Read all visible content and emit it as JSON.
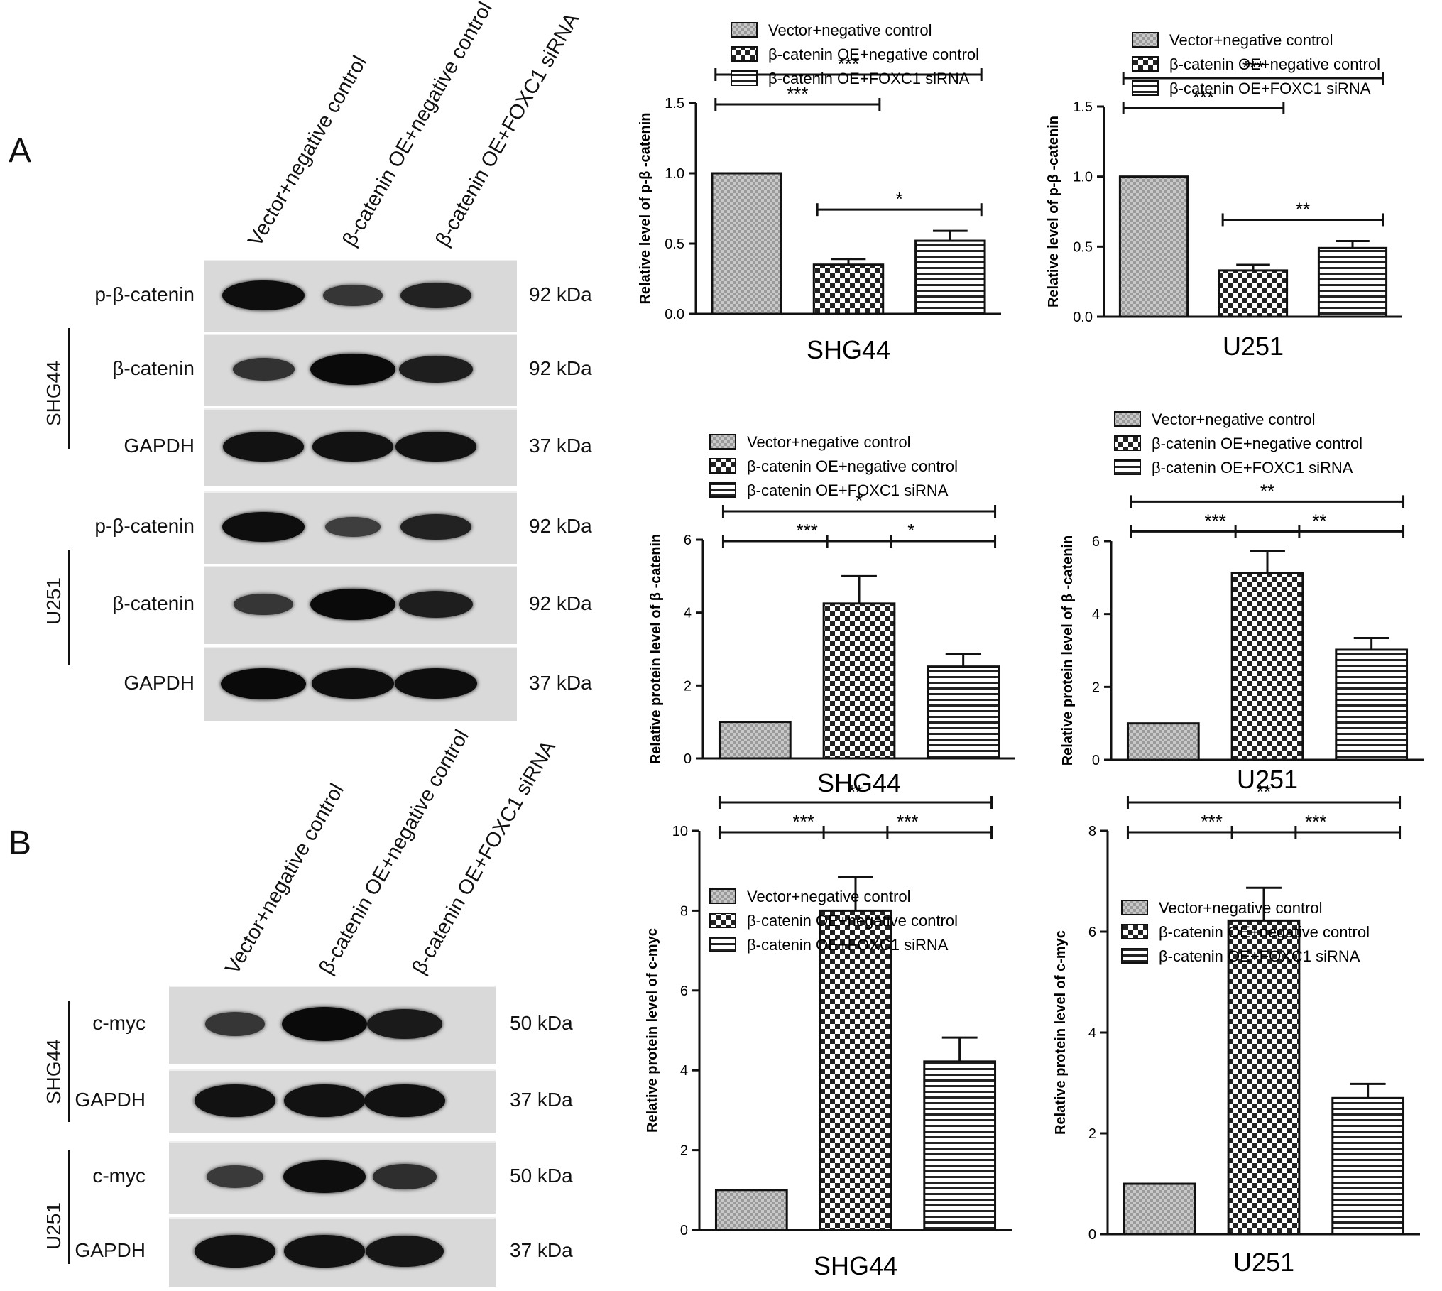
{
  "panels": {
    "A": "A",
    "B": "B"
  },
  "western_A": {
    "lanes": [
      "Vector+negative control",
      "β-catenin OE+negative control",
      "β-catenin OE+FOXC1 siRNA"
    ],
    "cells": [
      "SHG44",
      "U251"
    ],
    "rows": [
      {
        "label": "p-β-catenin",
        "kda": "92 kDa",
        "intensity": [
          0.95,
          0.45,
          0.7
        ]
      },
      {
        "label": "β-catenin",
        "kda": "92 kDa",
        "intensity": [
          0.5,
          1.0,
          0.75
        ]
      },
      {
        "label": "GAPDH",
        "kda": "37 kDa",
        "intensity": [
          0.9,
          0.9,
          0.9
        ]
      },
      {
        "label": "p-β-catenin",
        "kda": "92 kDa",
        "intensity": [
          0.95,
          0.35,
          0.7
        ]
      },
      {
        "label": "β-catenin",
        "kda": "92 kDa",
        "intensity": [
          0.45,
          1.0,
          0.75
        ]
      },
      {
        "label": "GAPDH",
        "kda": "37 kDa",
        "intensity": [
          1.0,
          0.95,
          0.95
        ]
      }
    ]
  },
  "western_B": {
    "lanes": [
      "Vector+negative control",
      "β-catenin OE+negative control",
      "β-catenin OE+FOXC1 siRNA"
    ],
    "cells": [
      "SHG44",
      "U251"
    ],
    "rows": [
      {
        "label": "c-myc",
        "kda": "50 kDa",
        "intensity": [
          0.45,
          1.0,
          0.8
        ]
      },
      {
        "label": "GAPDH",
        "kda": "37 kDa",
        "intensity": [
          0.9,
          0.9,
          0.9
        ]
      },
      {
        "label": "c-myc",
        "kda": "50 kDa",
        "intensity": [
          0.4,
          0.95,
          0.55
        ]
      },
      {
        "label": "GAPDH",
        "kda": "37 kDa",
        "intensity": [
          0.9,
          0.9,
          0.85
        ]
      }
    ]
  },
  "legend_entries": [
    "Vector+negative control",
    "β-catenin OE+negative control",
    "β-catenin OE+FOXC1 siRNA"
  ],
  "chart_data": [
    {
      "type": "bar",
      "title": "SHG44",
      "ylabel": "Relative level of p-β -catenin",
      "categories": [
        "Vector+negative control",
        "β-catenin OE+negative control",
        "β-catenin OE+FOXC1 siRNA"
      ],
      "values": [
        1.0,
        0.35,
        0.52
      ],
      "errors": [
        0,
        0.04,
        0.07
      ],
      "ylim": [
        0,
        1.5
      ],
      "yticks": [
        "0.0",
        "0.5",
        "1.0",
        "1.5"
      ],
      "tick_values": [
        0,
        0.5,
        1.0,
        1.5
      ],
      "significance": [
        {
          "from": 0,
          "to": 1,
          "label": "***",
          "level": 1
        },
        {
          "from": 1,
          "to": 2,
          "label": "*",
          "level": 0
        },
        {
          "from": 0,
          "to": 2,
          "label": "***",
          "level": 2
        }
      ]
    },
    {
      "type": "bar",
      "title": "U251",
      "ylabel": "Relative level of p-β -catenin",
      "categories": [
        "Vector+negative control",
        "β-catenin OE+negative control",
        "β-catenin OE+FOXC1 siRNA"
      ],
      "values": [
        1.0,
        0.33,
        0.49
      ],
      "errors": [
        0,
        0.04,
        0.05
      ],
      "ylim": [
        0,
        1.5
      ],
      "yticks": [
        "0.0",
        "0.5",
        "1.0",
        "1.5"
      ],
      "tick_values": [
        0,
        0.5,
        1.0,
        1.5
      ],
      "significance": [
        {
          "from": 0,
          "to": 1,
          "label": "***",
          "level": 1
        },
        {
          "from": 1,
          "to": 2,
          "label": "**",
          "level": 0
        },
        {
          "from": 0,
          "to": 2,
          "label": "***",
          "level": 2
        }
      ]
    },
    {
      "type": "bar",
      "title": "SHG44",
      "ylabel": "Relative protein level of β -catenin",
      "categories": [
        "Vector+negative control",
        "β-catenin OE+negative control",
        "β-catenin OE+FOXC1 siRNA"
      ],
      "values": [
        1.0,
        4.25,
        2.52
      ],
      "errors": [
        0,
        0.75,
        0.35
      ],
      "ylim": [
        0,
        6
      ],
      "yticks": [
        "0",
        "2",
        "4",
        "6"
      ],
      "tick_values": [
        0,
        2,
        4,
        6
      ],
      "significance": [
        {
          "from": 0,
          "to": 1,
          "label": "***",
          "level": 1
        },
        {
          "from": 1,
          "to": 2,
          "label": "*",
          "level": 1
        },
        {
          "from": 0,
          "to": 2,
          "label": "*",
          "level": 2
        }
      ]
    },
    {
      "type": "bar",
      "title": "U251",
      "ylabel": "Relative protein level of β -catenin",
      "categories": [
        "Vector+negative control",
        "β-catenin OE+negative control",
        "β-catenin OE+FOXC1 siRNA"
      ],
      "values": [
        1.0,
        5.12,
        3.02
      ],
      "errors": [
        0,
        0.6,
        0.32
      ],
      "ylim": [
        0,
        6
      ],
      "yticks": [
        "0",
        "2",
        "4",
        "6"
      ],
      "tick_values": [
        0,
        2,
        4,
        6
      ],
      "significance": [
        {
          "from": 0,
          "to": 1,
          "label": "***",
          "level": 1
        },
        {
          "from": 1,
          "to": 2,
          "label": "**",
          "level": 1
        },
        {
          "from": 0,
          "to": 2,
          "label": "**",
          "level": 2
        }
      ]
    },
    {
      "type": "bar",
      "title": "SHG44",
      "ylabel": "Relative protein level of c-myc",
      "categories": [
        "Vector+negative control",
        "β-catenin OE+negative control",
        "β-catenin OE+FOXC1 siRNA"
      ],
      "values": [
        1.0,
        8.0,
        4.22
      ],
      "errors": [
        0,
        0.85,
        0.6
      ],
      "ylim": [
        0,
        10
      ],
      "yticks": [
        "0",
        "2",
        "4",
        "6",
        "8",
        "10"
      ],
      "tick_values": [
        0,
        2,
        4,
        6,
        8,
        10
      ],
      "significance": [
        {
          "from": 0,
          "to": 1,
          "label": "***",
          "level": 1
        },
        {
          "from": 1,
          "to": 2,
          "label": "***",
          "level": 1
        },
        {
          "from": 0,
          "to": 2,
          "label": "**",
          "level": 2
        }
      ]
    },
    {
      "type": "bar",
      "title": "U251",
      "ylabel": "Relative protein level of c-myc",
      "categories": [
        "Vector+negative control",
        "β-catenin OE+negative control",
        "β-catenin OE+FOXC1 siRNA"
      ],
      "values": [
        1.0,
        6.22,
        2.7
      ],
      "errors": [
        0,
        0.65,
        0.28
      ],
      "ylim": [
        0,
        8
      ],
      "yticks": [
        "0",
        "2",
        "4",
        "6",
        "8"
      ],
      "tick_values": [
        0,
        2,
        4,
        6,
        8
      ],
      "significance": [
        {
          "from": 0,
          "to": 1,
          "label": "***",
          "level": 1
        },
        {
          "from": 1,
          "to": 2,
          "label": "***",
          "level": 1
        },
        {
          "from": 0,
          "to": 2,
          "label": "**",
          "level": 2
        }
      ]
    }
  ]
}
